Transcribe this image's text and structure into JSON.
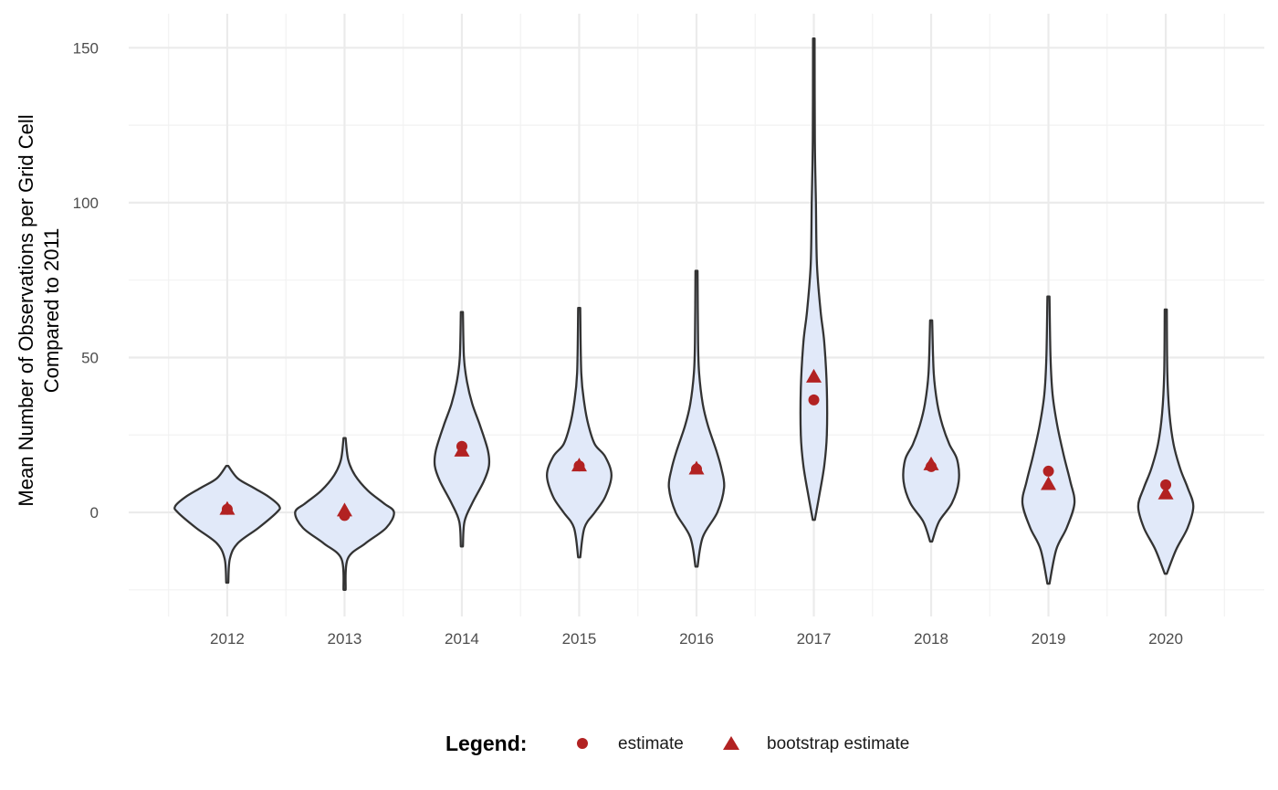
{
  "chart_data": {
    "type": "violin",
    "title": "",
    "xlabel": "",
    "ylabel": [
      "Mean Number of Observations per Grid Cell",
      "Compared to 2011"
    ],
    "categories": [
      "2012",
      "2013",
      "2014",
      "2015",
      "2016",
      "2017",
      "2018",
      "2019",
      "2020"
    ],
    "yticks": [
      0,
      50,
      100,
      150
    ],
    "ylim": [
      -33.6,
      161
    ],
    "grid": true,
    "legend": {
      "title": "Legend:",
      "position": "bottom",
      "entries": [
        {
          "label": "estimate",
          "shape": "circle"
        },
        {
          "label": "bootstrap estimate",
          "shape": "triangle"
        }
      ]
    },
    "colors": {
      "violin_fill": "#e1e9f9",
      "violin_stroke": "#333333",
      "point": "#b22222",
      "grid": "#ebebeb"
    },
    "series": [
      {
        "name": "estimate",
        "values": [
          1,
          -1,
          21.3,
          15,
          14,
          36.3,
          14.8,
          13.3,
          8.9
        ]
      },
      {
        "name": "bootstrap estimate",
        "values": [
          1,
          0.5,
          19.8,
          15,
          14,
          43.7,
          15.4,
          9,
          6
        ]
      }
    ],
    "violins": [
      {
        "category": "2012",
        "density": [
          [
            -22.7,
            0.02
          ],
          [
            -15,
            0.05
          ],
          [
            -10,
            0.2
          ],
          [
            -5,
            0.6
          ],
          [
            0,
            0.95
          ],
          [
            2,
            1.0
          ],
          [
            5,
            0.8
          ],
          [
            8,
            0.5
          ],
          [
            11,
            0.2
          ],
          [
            15,
            0.02
          ]
        ]
      },
      {
        "category": "2013",
        "density": [
          [
            -25,
            0.02
          ],
          [
            -15,
            0.06
          ],
          [
            -10,
            0.4
          ],
          [
            -5,
            0.8
          ],
          [
            0,
            0.95
          ],
          [
            3,
            0.75
          ],
          [
            7,
            0.45
          ],
          [
            12,
            0.2
          ],
          [
            17,
            0.07
          ],
          [
            24,
            0.02
          ]
        ]
      },
      {
        "category": "2014",
        "density": [
          [
            -11,
            0.02
          ],
          [
            -3,
            0.05
          ],
          [
            3,
            0.2
          ],
          [
            10,
            0.42
          ],
          [
            15,
            0.52
          ],
          [
            20,
            0.5
          ],
          [
            28,
            0.35
          ],
          [
            35,
            0.2
          ],
          [
            42,
            0.1
          ],
          [
            50,
            0.04
          ],
          [
            64.7,
            0.02
          ]
        ]
      },
      {
        "category": "2015",
        "density": [
          [
            -14.5,
            0.02
          ],
          [
            -5,
            0.1
          ],
          [
            0,
            0.3
          ],
          [
            5,
            0.5
          ],
          [
            12,
            0.62
          ],
          [
            18,
            0.5
          ],
          [
            22,
            0.3
          ],
          [
            28,
            0.18
          ],
          [
            35,
            0.1
          ],
          [
            45,
            0.04
          ],
          [
            66,
            0.02
          ]
        ]
      },
      {
        "category": "2016",
        "density": [
          [
            -17.5,
            0.02
          ],
          [
            -8,
            0.12
          ],
          [
            0,
            0.4
          ],
          [
            8,
            0.53
          ],
          [
            14,
            0.48
          ],
          [
            20,
            0.38
          ],
          [
            28,
            0.22
          ],
          [
            35,
            0.12
          ],
          [
            45,
            0.05
          ],
          [
            55,
            0.03
          ],
          [
            78,
            0.02
          ]
        ]
      },
      {
        "category": "2017",
        "density": [
          [
            -2.4,
            0.02
          ],
          [
            5,
            0.1
          ],
          [
            15,
            0.2
          ],
          [
            25,
            0.25
          ],
          [
            40,
            0.25
          ],
          [
            55,
            0.2
          ],
          [
            65,
            0.13
          ],
          [
            80,
            0.06
          ],
          [
            100,
            0.04
          ],
          [
            120,
            0.02
          ],
          [
            153,
            0.015
          ]
        ]
      },
      {
        "category": "2018",
        "density": [
          [
            -9.4,
            0.02
          ],
          [
            -3,
            0.15
          ],
          [
            3,
            0.4
          ],
          [
            10,
            0.53
          ],
          [
            17,
            0.5
          ],
          [
            22,
            0.35
          ],
          [
            28,
            0.22
          ],
          [
            35,
            0.12
          ],
          [
            45,
            0.05
          ],
          [
            62,
            0.02
          ]
        ]
      },
      {
        "category": "2019",
        "density": [
          [
            -23,
            0.02
          ],
          [
            -12,
            0.15
          ],
          [
            -5,
            0.35
          ],
          [
            3,
            0.5
          ],
          [
            10,
            0.42
          ],
          [
            18,
            0.3
          ],
          [
            28,
            0.17
          ],
          [
            38,
            0.08
          ],
          [
            50,
            0.04
          ],
          [
            69.7,
            0.02
          ]
        ]
      },
      {
        "category": "2020",
        "density": [
          [
            -19.8,
            0.02
          ],
          [
            -12,
            0.2
          ],
          [
            -5,
            0.42
          ],
          [
            2,
            0.53
          ],
          [
            8,
            0.42
          ],
          [
            14,
            0.28
          ],
          [
            22,
            0.15
          ],
          [
            32,
            0.07
          ],
          [
            45,
            0.03
          ],
          [
            65.5,
            0.02
          ]
        ]
      }
    ]
  }
}
